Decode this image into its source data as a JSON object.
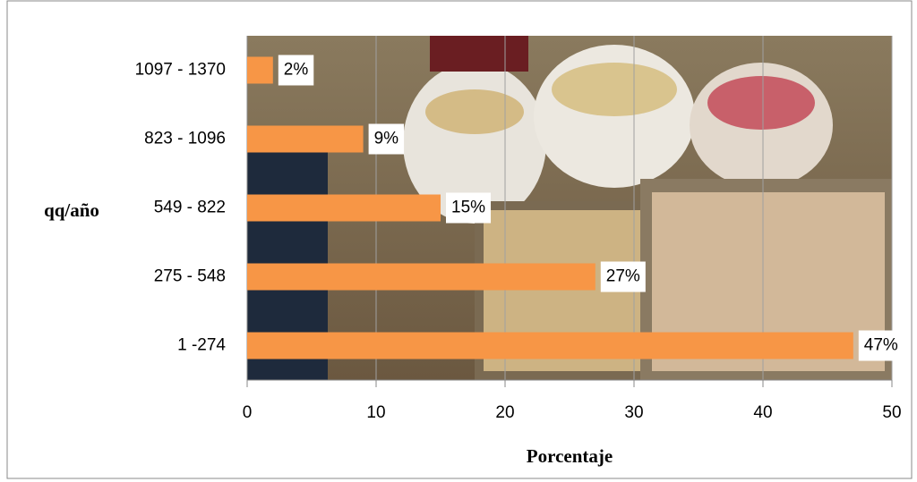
{
  "chart_data": {
    "type": "hbar",
    "categories": [
      "1097 - 1370",
      "823 - 1096",
      "549 - 822",
      "275 - 548",
      "1 -274"
    ],
    "values": [
      2,
      9,
      15,
      27,
      47
    ],
    "value_labels": [
      "2%",
      "9%",
      "15%",
      "27%",
      "47%"
    ],
    "color": "#f79646",
    "xlim": [
      0,
      50
    ],
    "xticks": [
      0,
      10,
      20,
      30,
      40,
      50
    ],
    "grid": true,
    "xlabel": "Porcentaje",
    "ylabel": "qq/año"
  }
}
